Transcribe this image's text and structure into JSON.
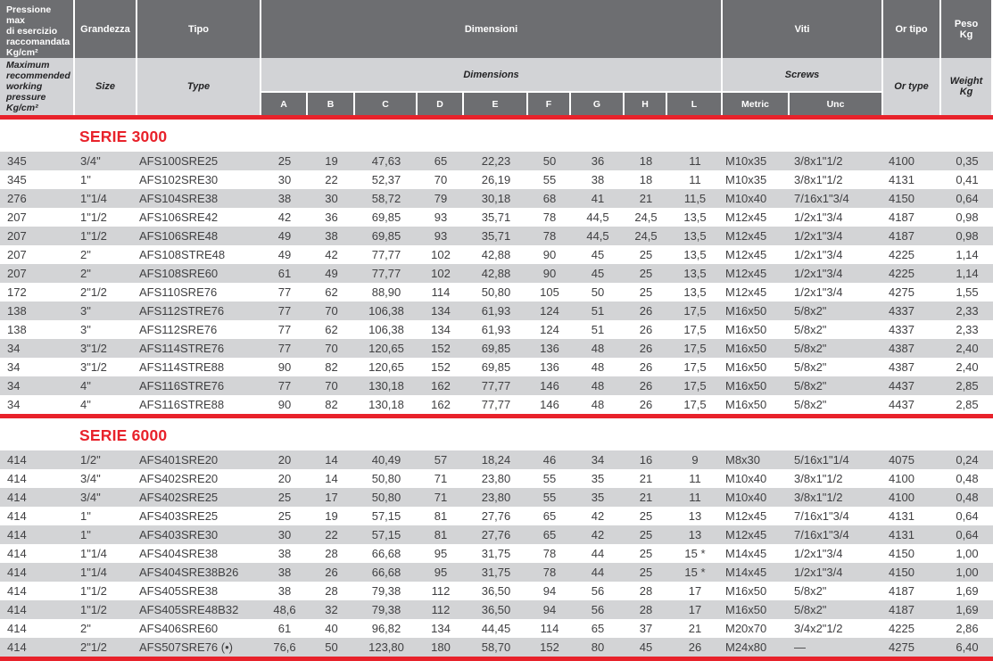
{
  "colors": {
    "accent_red": "#e8222b",
    "header_dark_gray": "#6d6e71",
    "header_light_gray": "#d2d3d6",
    "row_stripe_gray": "#d3d4d6",
    "data_text": "#404042"
  },
  "header": {
    "pressure": {
      "it": "Pressione max\ndi esercizio\nraccomandata\nKg/cm²",
      "en": "Maximum\nrecommended\nworking\npressure Kg/cm²"
    },
    "size": {
      "it": "Grandezza",
      "en": "Size"
    },
    "type": {
      "it": "Tipo",
      "en": "Type"
    },
    "dimensions": {
      "it": "Dimensioni",
      "en": "Dimensions",
      "subcols": [
        "A",
        "B",
        "C",
        "D",
        "E",
        "F",
        "G",
        "H",
        "L"
      ]
    },
    "screws": {
      "it": "Viti",
      "en": "Screws",
      "subcols": [
        "Metric",
        "Unc"
      ]
    },
    "or_type": {
      "it": "Or tipo",
      "en": "Or type"
    },
    "weight": {
      "it": "Peso\nKg",
      "en": "Weight\nKg"
    },
    "field_names": [
      "pressure",
      "size",
      "type",
      "dim-a",
      "dim-b",
      "dim-c",
      "dim-d",
      "dim-e",
      "dim-f",
      "dim-g",
      "dim-h",
      "dim-l",
      "screw-metric",
      "screw-unc",
      "or-type",
      "weight"
    ]
  },
  "sections": [
    {
      "title": "SERIE 3000",
      "rows": [
        [
          "345",
          "3/4\"",
          "AFS100SRE25",
          "25",
          "19",
          "47,63",
          "65",
          "22,23",
          "50",
          "36",
          "18",
          "11",
          "M10x35",
          "3/8x1\"1/2",
          "4100",
          "0,35"
        ],
        [
          "345",
          "1\"",
          "AFS102SRE30",
          "30",
          "22",
          "52,37",
          "70",
          "26,19",
          "55",
          "38",
          "18",
          "11",
          "M10x35",
          "3/8x1\"1/2",
          "4131",
          "0,41"
        ],
        [
          "276",
          "1\"1/4",
          "AFS104SRE38",
          "38",
          "30",
          "58,72",
          "79",
          "30,18",
          "68",
          "41",
          "21",
          "11,5",
          "M10x40",
          "7/16x1\"3/4",
          "4150",
          "0,64"
        ],
        [
          "207",
          "1\"1/2",
          "AFS106SRE42",
          "42",
          "36",
          "69,85",
          "93",
          "35,71",
          "78",
          "44,5",
          "24,5",
          "13,5",
          "M12x45",
          "1/2x1\"3/4",
          "4187",
          "0,98"
        ],
        [
          "207",
          "1\"1/2",
          "AFS106SRE48",
          "49",
          "38",
          "69,85",
          "93",
          "35,71",
          "78",
          "44,5",
          "24,5",
          "13,5",
          "M12x45",
          "1/2x1\"3/4",
          "4187",
          "0,98"
        ],
        [
          "207",
          "2\"",
          "AFS108STRE48",
          "49",
          "42",
          "77,77",
          "102",
          "42,88",
          "90",
          "45",
          "25",
          "13,5",
          "M12x45",
          "1/2x1\"3/4",
          "4225",
          "1,14"
        ],
        [
          "207",
          "2\"",
          "AFS108SRE60",
          "61",
          "49",
          "77,77",
          "102",
          "42,88",
          "90",
          "45",
          "25",
          "13,5",
          "M12x45",
          "1/2x1\"3/4",
          "4225",
          "1,14"
        ],
        [
          "172",
          "2\"1/2",
          "AFS110SRE76",
          "77",
          "62",
          "88,90",
          "114",
          "50,80",
          "105",
          "50",
          "25",
          "13,5",
          "M12x45",
          "1/2x1\"3/4",
          "4275",
          "1,55"
        ],
        [
          "138",
          "3\"",
          "AFS112STRE76",
          "77",
          "70",
          "106,38",
          "134",
          "61,93",
          "124",
          "51",
          "26",
          "17,5",
          "M16x50",
          "5/8x2\"",
          "4337",
          "2,33"
        ],
        [
          "138",
          "3\"",
          "AFS112SRE76",
          "77",
          "62",
          "106,38",
          "134",
          "61,93",
          "124",
          "51",
          "26",
          "17,5",
          "M16x50",
          "5/8x2\"",
          "4337",
          "2,33"
        ],
        [
          "34",
          "3\"1/2",
          "AFS114STRE76",
          "77",
          "70",
          "120,65",
          "152",
          "69,85",
          "136",
          "48",
          "26",
          "17,5",
          "M16x50",
          "5/8x2\"",
          "4387",
          "2,40"
        ],
        [
          "34",
          "3\"1/2",
          "AFS114STRE88",
          "90",
          "82",
          "120,65",
          "152",
          "69,85",
          "136",
          "48",
          "26",
          "17,5",
          "M16x50",
          "5/8x2\"",
          "4387",
          "2,40"
        ],
        [
          "34",
          "4\"",
          "AFS116STRE76",
          "77",
          "70",
          "130,18",
          "162",
          "77,77",
          "146",
          "48",
          "26",
          "17,5",
          "M16x50",
          "5/8x2\"",
          "4437",
          "2,85"
        ],
        [
          "34",
          "4\"",
          "AFS116STRE88",
          "90",
          "82",
          "130,18",
          "162",
          "77,77",
          "146",
          "48",
          "26",
          "17,5",
          "M16x50",
          "5/8x2\"",
          "4437",
          "2,85"
        ]
      ]
    },
    {
      "title": "SERIE 6000",
      "rows": [
        [
          "414",
          "1/2\"",
          "AFS401SRE20",
          "20",
          "14",
          "40,49",
          "57",
          "18,24",
          "46",
          "34",
          "16",
          "9",
          "M8x30",
          "5/16x1\"1/4",
          "4075",
          "0,24"
        ],
        [
          "414",
          "3/4\"",
          "AFS402SRE20",
          "20",
          "14",
          "50,80",
          "71",
          "23,80",
          "55",
          "35",
          "21",
          "11",
          "M10x40",
          "3/8x1\"1/2",
          "4100",
          "0,48"
        ],
        [
          "414",
          "3/4\"",
          "AFS402SRE25",
          "25",
          "17",
          "50,80",
          "71",
          "23,80",
          "55",
          "35",
          "21",
          "11",
          "M10x40",
          "3/8x1\"1/2",
          "4100",
          "0,48"
        ],
        [
          "414",
          "1\"",
          "AFS403SRE25",
          "25",
          "19",
          "57,15",
          "81",
          "27,76",
          "65",
          "42",
          "25",
          "13",
          "M12x45",
          "7/16x1\"3/4",
          "4131",
          "0,64"
        ],
        [
          "414",
          "1\"",
          "AFS403SRE30",
          "30",
          "22",
          "57,15",
          "81",
          "27,76",
          "65",
          "42",
          "25",
          "13",
          "M12x45",
          "7/16x1\"3/4",
          "4131",
          "0,64"
        ],
        [
          "414",
          "1\"1/4",
          "AFS404SRE38",
          "38",
          "28",
          "66,68",
          "95",
          "31,75",
          "78",
          "44",
          "25",
          "15 *",
          "M14x45",
          "1/2x1\"3/4",
          "4150",
          "1,00"
        ],
        [
          "414",
          "1\"1/4",
          "AFS404SRE38B26",
          "38",
          "26",
          "66,68",
          "95",
          "31,75",
          "78",
          "44",
          "25",
          "15 *",
          "M14x45",
          "1/2x1\"3/4",
          "4150",
          "1,00"
        ],
        [
          "414",
          "1\"1/2",
          "AFS405SRE38",
          "38",
          "28",
          "79,38",
          "112",
          "36,50",
          "94",
          "56",
          "28",
          "17",
          "M16x50",
          "5/8x2\"",
          "4187",
          "1,69"
        ],
        [
          "414",
          "1\"1/2",
          "AFS405SRE48B32",
          "48,6",
          "32",
          "79,38",
          "112",
          "36,50",
          "94",
          "56",
          "28",
          "17",
          "M16x50",
          "5/8x2\"",
          "4187",
          "1,69"
        ],
        [
          "414",
          "2\"",
          "AFS406SRE60",
          "61",
          "40",
          "96,82",
          "134",
          "44,45",
          "114",
          "65",
          "37",
          "21",
          "M20x70",
          "3/4x2\"1/2",
          "4225",
          "2,86"
        ],
        [
          "414",
          "2\"1/2",
          "AFS507SRE76 (•)",
          "76,6",
          "50",
          "123,80",
          "180",
          "58,70",
          "152",
          "80",
          "45",
          "26",
          "M24x80",
          "—",
          "4275",
          "6,40"
        ]
      ]
    }
  ]
}
